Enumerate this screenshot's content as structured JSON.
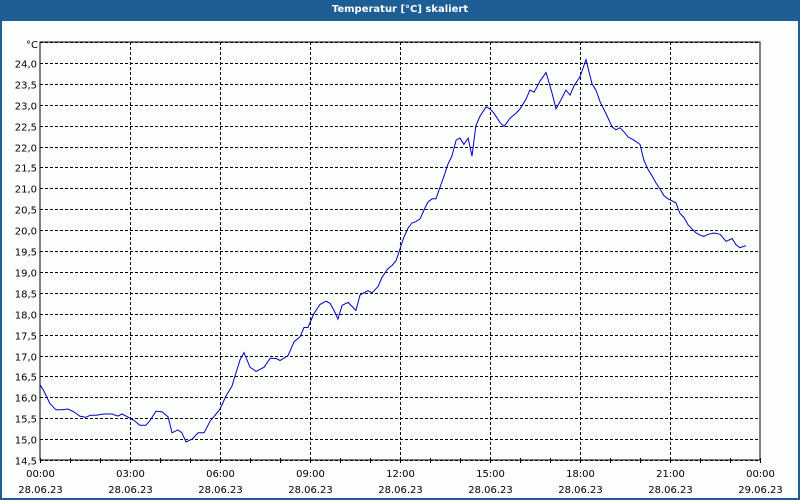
{
  "window": {
    "title": "Temperatur [°C] skaliert"
  },
  "colors": {
    "titlebar": "#1d5e95",
    "line": "#0000c8",
    "grid": "#000000",
    "background": "#fcfefc"
  },
  "chart_data": {
    "type": "line",
    "title": "Temperatur [°C] skaliert",
    "xlabel": "",
    "ylabel": "°C",
    "ylim": [
      14.5,
      24.25
    ],
    "grid": true,
    "y_ticks": [
      "14,5",
      "15,0",
      "15,5",
      "16,0",
      "16,5",
      "17,0",
      "17,5",
      "18,0",
      "18,5",
      "19,0",
      "19,5",
      "20,0",
      "20,5",
      "21,0",
      "21,5",
      "22,0",
      "22,5",
      "23,0",
      "23,5",
      "24,0"
    ],
    "x_ticks": [
      {
        "time": "00:00",
        "date": "28.06.23"
      },
      {
        "time": "03:00",
        "date": "28.06.23"
      },
      {
        "time": "06:00",
        "date": "28.06.23"
      },
      {
        "time": "09:00",
        "date": "28.06.23"
      },
      {
        "time": "12:00",
        "date": "28.06.23"
      },
      {
        "time": "15:00",
        "date": "28.06.23"
      },
      {
        "time": "18:00",
        "date": "28.06.23"
      },
      {
        "time": "21:00",
        "date": "28.06.23"
      },
      {
        "time": "00:00",
        "date": "29.06.23"
      }
    ],
    "series": [
      {
        "name": "Temperatur",
        "x_hours": [
          0,
          0.13,
          0.33,
          0.53,
          0.73,
          0.93,
          1.13,
          1.33,
          1.53,
          1.67,
          1.87,
          2.13,
          2.4,
          2.6,
          2.73,
          2.87,
          3.13,
          3.33,
          3.53,
          3.67,
          3.87,
          4.07,
          4.27,
          4.4,
          4.6,
          4.73,
          4.87,
          5.07,
          5.27,
          5.47,
          5.67,
          5.87,
          6.0,
          6.2,
          6.4,
          6.53,
          6.67,
          6.8,
          7.0,
          7.2,
          7.47,
          7.67,
          7.87,
          8.0,
          8.27,
          8.47,
          8.67,
          8.8,
          8.93,
          9.13,
          9.33,
          9.53,
          9.67,
          9.8,
          9.93,
          10.07,
          10.27,
          10.53,
          10.67,
          10.93,
          11.07,
          11.27,
          11.4,
          11.6,
          11.73,
          11.87,
          12.0,
          12.13,
          12.27,
          12.4,
          12.53,
          12.67,
          12.8,
          12.93,
          13.07,
          13.2,
          13.33,
          13.47,
          13.6,
          13.73,
          13.87,
          14.0,
          14.13,
          14.27,
          14.4,
          14.53,
          14.67,
          14.87,
          15.0,
          15.13,
          15.33,
          15.47,
          15.67,
          15.87,
          16.0,
          16.2,
          16.33,
          16.47,
          16.67,
          16.87,
          17.07,
          17.2,
          17.33,
          17.53,
          17.67,
          17.8,
          18.0,
          18.2,
          18.4,
          18.53,
          18.67,
          18.87,
          19.07,
          19.2,
          19.33,
          19.47,
          19.6,
          19.8,
          20.0,
          20.13,
          20.27,
          20.4,
          20.53,
          20.67,
          20.8,
          20.93,
          21.07,
          21.2,
          21.33,
          21.47,
          21.6,
          21.73,
          21.87,
          22.0,
          22.13,
          22.27,
          22.47,
          22.67,
          22.87,
          22.93,
          23.07,
          23.2,
          23.33,
          23.53,
          23.67,
          23.8
        ],
        "values": [
          16.3,
          16.15,
          15.85,
          15.7,
          15.7,
          15.72,
          15.65,
          15.55,
          15.52,
          15.57,
          15.57,
          15.6,
          15.6,
          15.55,
          15.6,
          15.55,
          15.45,
          15.33,
          15.33,
          15.45,
          15.67,
          15.65,
          15.53,
          15.15,
          15.22,
          15.15,
          14.93,
          15.0,
          15.15,
          15.15,
          15.43,
          15.6,
          15.72,
          16.03,
          16.27,
          16.58,
          16.9,
          17.07,
          16.72,
          16.62,
          16.72,
          16.93,
          16.93,
          16.88,
          17.0,
          17.33,
          17.45,
          17.67,
          17.67,
          18.0,
          18.22,
          18.3,
          18.25,
          18.08,
          17.87,
          18.2,
          18.27,
          18.08,
          18.45,
          18.55,
          18.5,
          18.65,
          18.87,
          19.08,
          19.15,
          19.27,
          19.55,
          19.83,
          20.05,
          20.17,
          20.2,
          20.27,
          20.48,
          20.67,
          20.75,
          20.75,
          21.02,
          21.3,
          21.58,
          21.77,
          22.15,
          22.2,
          22.05,
          22.2,
          21.77,
          22.5,
          22.73,
          22.95,
          22.9,
          22.8,
          22.58,
          22.48,
          22.68,
          22.8,
          22.9,
          23.13,
          23.35,
          23.3,
          23.57,
          23.77,
          23.27,
          22.9,
          23.07,
          23.35,
          23.23,
          23.45,
          23.67,
          24.08,
          23.5,
          23.35,
          23.07,
          22.78,
          22.47,
          22.4,
          22.45,
          22.35,
          22.23,
          22.15,
          22.05,
          21.67,
          21.45,
          21.3,
          21.13,
          20.98,
          20.82,
          20.75,
          20.7,
          20.65,
          20.4,
          20.3,
          20.13,
          20.03,
          19.93,
          19.88,
          19.85,
          19.9,
          19.93,
          19.9,
          19.73,
          19.75,
          19.8,
          19.65,
          19.58,
          19.63
        ]
      }
    ]
  }
}
